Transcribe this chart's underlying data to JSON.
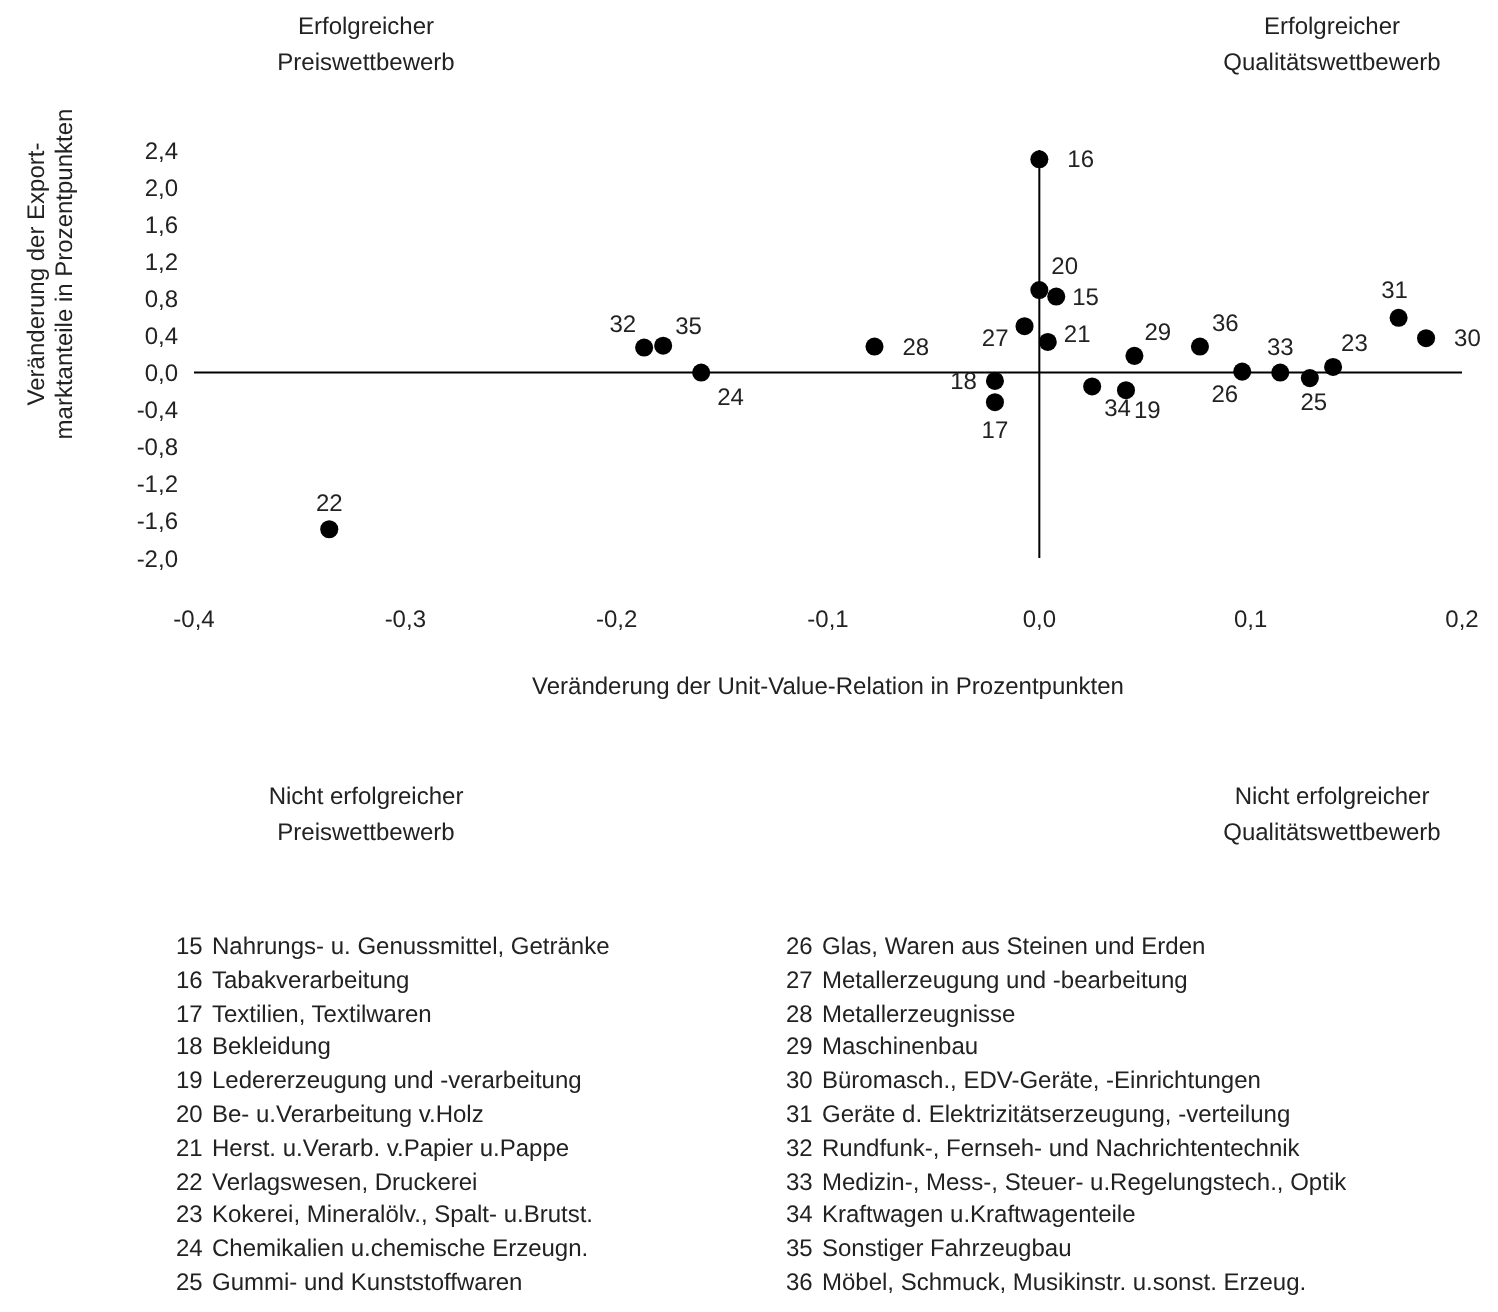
{
  "chart_data": {
    "type": "scatter",
    "xlabel": "Veränderung der Unit-Value-Relation in Prozentpunkten",
    "ylabel": "Veränderung der Export-\nmarktanteile in Prozentpunkten",
    "xlim": [
      -0.4,
      0.2
    ],
    "xticks": [
      {
        "value": -0.4,
        "label": "-0,4"
      },
      {
        "value": -0.3,
        "label": "-0,3"
      },
      {
        "value": -0.2,
        "label": "-0,2"
      },
      {
        "value": -0.1,
        "label": "-0,1"
      },
      {
        "value": 0,
        "label": "0,0"
      },
      {
        "value": 0.1,
        "label": "0,1"
      },
      {
        "value": 0.2,
        "label": "0,2"
      }
    ],
    "ylim": [
      -2.0,
      2.4
    ],
    "yticks": [
      {
        "value": -2.0,
        "label": "-2,0"
      },
      {
        "value": -1.6,
        "label": "-1,6"
      },
      {
        "value": -1.2,
        "label": "-1,2"
      },
      {
        "value": -0.8,
        "label": "-0,8"
      },
      {
        "value": -0.4,
        "label": "-0,4"
      },
      {
        "value": 0,
        "label": "0,0"
      },
      {
        "value": 0.4,
        "label": "0,4"
      },
      {
        "value": 0.8,
        "label": "0,8"
      },
      {
        "value": 1.2,
        "label": "1,2"
      },
      {
        "value": 1.6,
        "label": "1,6"
      },
      {
        "value": 2.0,
        "label": "2,0"
      },
      {
        "value": 2.4,
        "label": "2,4"
      }
    ],
    "marker": "circle",
    "series": [
      {
        "name": "15",
        "color": "#000000",
        "x": [
          0.008
        ],
        "values": [
          0.82
        ]
      },
      {
        "name": "16",
        "color": "#000000",
        "x": [
          0.0
        ],
        "values": [
          2.3
        ]
      },
      {
        "name": "17",
        "color": "#000000",
        "x": [
          -0.021
        ],
        "values": [
          -0.32
        ]
      },
      {
        "name": "18",
        "color": "#000000",
        "x": [
          -0.021
        ],
        "values": [
          -0.09
        ]
      },
      {
        "name": "19",
        "color": "#000000",
        "x": [
          0.041
        ],
        "values": [
          -0.19
        ]
      },
      {
        "name": "20",
        "color": "#000000",
        "x": [
          0.0
        ],
        "values": [
          0.89
        ]
      },
      {
        "name": "21",
        "color": "#000000",
        "x": [
          0.004
        ],
        "values": [
          0.33
        ]
      },
      {
        "name": "22",
        "color": "#000000",
        "x": [
          -0.336
        ],
        "values": [
          -1.69
        ]
      },
      {
        "name": "23",
        "color": "#000000",
        "x": [
          0.139
        ],
        "values": [
          0.06
        ]
      },
      {
        "name": "24",
        "color": "#000000",
        "x": [
          -0.16
        ],
        "values": [
          0.0
        ]
      },
      {
        "name": "25",
        "color": "#000000",
        "x": [
          0.128
        ],
        "values": [
          -0.06
        ]
      },
      {
        "name": "26",
        "color": "#000000",
        "x": [
          0.096
        ],
        "values": [
          0.01
        ]
      },
      {
        "name": "27",
        "color": "#000000",
        "x": [
          -0.007
        ],
        "values": [
          0.5
        ]
      },
      {
        "name": "28",
        "color": "#000000",
        "x": [
          -0.078
        ],
        "values": [
          0.28
        ]
      },
      {
        "name": "29",
        "color": "#000000",
        "x": [
          0.045
        ],
        "values": [
          0.18
        ]
      },
      {
        "name": "30",
        "color": "#000000",
        "x": [
          0.183
        ],
        "values": [
          0.37
        ]
      },
      {
        "name": "31",
        "color": "#000000",
        "x": [
          0.17
        ],
        "values": [
          0.59
        ]
      },
      {
        "name": "32",
        "color": "#000000",
        "x": [
          -0.187
        ],
        "values": [
          0.27
        ]
      },
      {
        "name": "33",
        "color": "#000000",
        "x": [
          0.114
        ],
        "values": [
          0.0
        ]
      },
      {
        "name": "34",
        "color": "#000000",
        "x": [
          0.025
        ],
        "values": [
          -0.15
        ]
      },
      {
        "name": "35",
        "color": "#000000",
        "x": [
          -0.178
        ],
        "values": [
          0.29
        ]
      },
      {
        "name": "36",
        "color": "#000000",
        "x": [
          0.076
        ],
        "values": [
          0.28
        ]
      }
    ],
    "annotations": [
      "Erfolgreicher\nPreiswettbewerb",
      "Erfolgreicher\nQualitätswettbewerb",
      "Nicht erfolgreicher\nPreiswettbewerb",
      "Nicht erfolgreicher\nQualitätswettbewerb",
      "15 Nahrungs- u. Genussmittel, Getränke",
      "16 Tabakverarbeitung",
      "17 Textilien, Textilwaren",
      "18 Bekleidung",
      "19 Ledererzeugung und -verarbeitung",
      "20 Be- u.Verarbeitung v.Holz",
      "21 Herst. u.Verarb. v.Papier u.Pappe",
      "22 Verlagswesen, Druckerei",
      "23 Kokerei, Mineralölv., Spalt- u.Brutst.",
      "24 Chemikalien u.chemische Erzeugn.",
      "25 Gummi- und Kunststoffwaren",
      "26 Glas, Waren aus Steinen und Erden",
      "27 Metallerzeugung und -bearbeitung",
      "28 Metallerzeugnisse",
      "29 Maschinenbau",
      "30 Büromasch., EDV-Geräte, -Einrichtungen",
      "31 Geräte d. Elektrizitätserzeugung, -verteilung",
      "32 Rundfunk-, Fernseh- und Nachrichtentechnik",
      "33 Medizin-, Mess-, Steuer- u.Regelungstech., Optik",
      "34 Kraftwagen u.Kraftwagenteile",
      "35 Sonstiger Fahrzeugbau",
      "36 Möbel, Schmuck, Musikinstr. u.sonst. Erzeug."
    ]
  }
}
